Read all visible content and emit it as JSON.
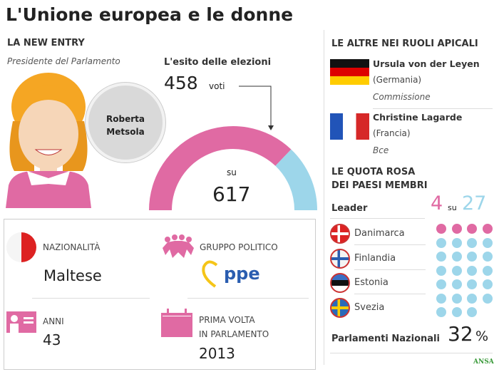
{
  "title": "L'Unione europea e le donne",
  "new_entry": {
    "heading": "LA NEW ENTRY",
    "role": "Presidente del Parlamento",
    "name_line1": "Roberta",
    "name_line2": "Metsola",
    "election_heading": "L'esito delle elezioni",
    "votes": "458",
    "votes_unit": "voti",
    "of_label": "su",
    "total": "617",
    "votes_value": 458,
    "total_value": 617,
    "colors": {
      "votes": "#e06aa3",
      "rest": "#9dd6ea"
    }
  },
  "facts": {
    "nationality_label": "NAZIONALITÀ",
    "nationality": "Maltese",
    "group_label": "GRUPPO POLITICO",
    "group_logo": "ppe",
    "age_label": "ANNI",
    "age": "43",
    "first_label_1": "PRIMA VOLTA",
    "first_label_2": "IN PARLAMENTO",
    "first_year": "2013"
  },
  "others": {
    "heading": "LE ALTRE NEI RUOLI APICALI",
    "people": [
      {
        "name": "Ursula von der Leyen",
        "country": "(Germania)",
        "role": "Commissione"
      },
      {
        "name": "Christine Lagarde",
        "country": "(Francia)",
        "role": "Bce"
      }
    ]
  },
  "quota": {
    "heading_1": "LE QUOTA ROSA",
    "heading_2": "DEI PAESI MEMBRI",
    "leader_label": "Leader",
    "women_leaders": "4",
    "su": "su",
    "total_countries": "27",
    "women_count": 4,
    "total_count": 27,
    "countries": [
      "Danimarca",
      "Finlandia",
      "Estonia",
      "Svezia"
    ],
    "parliaments_label": "Parlamenti Nazionali",
    "parliaments_value": "32",
    "percent": "%",
    "colors": {
      "women": "#e06aa3",
      "men": "#9dd6ea"
    }
  },
  "credit": "ANSA"
}
